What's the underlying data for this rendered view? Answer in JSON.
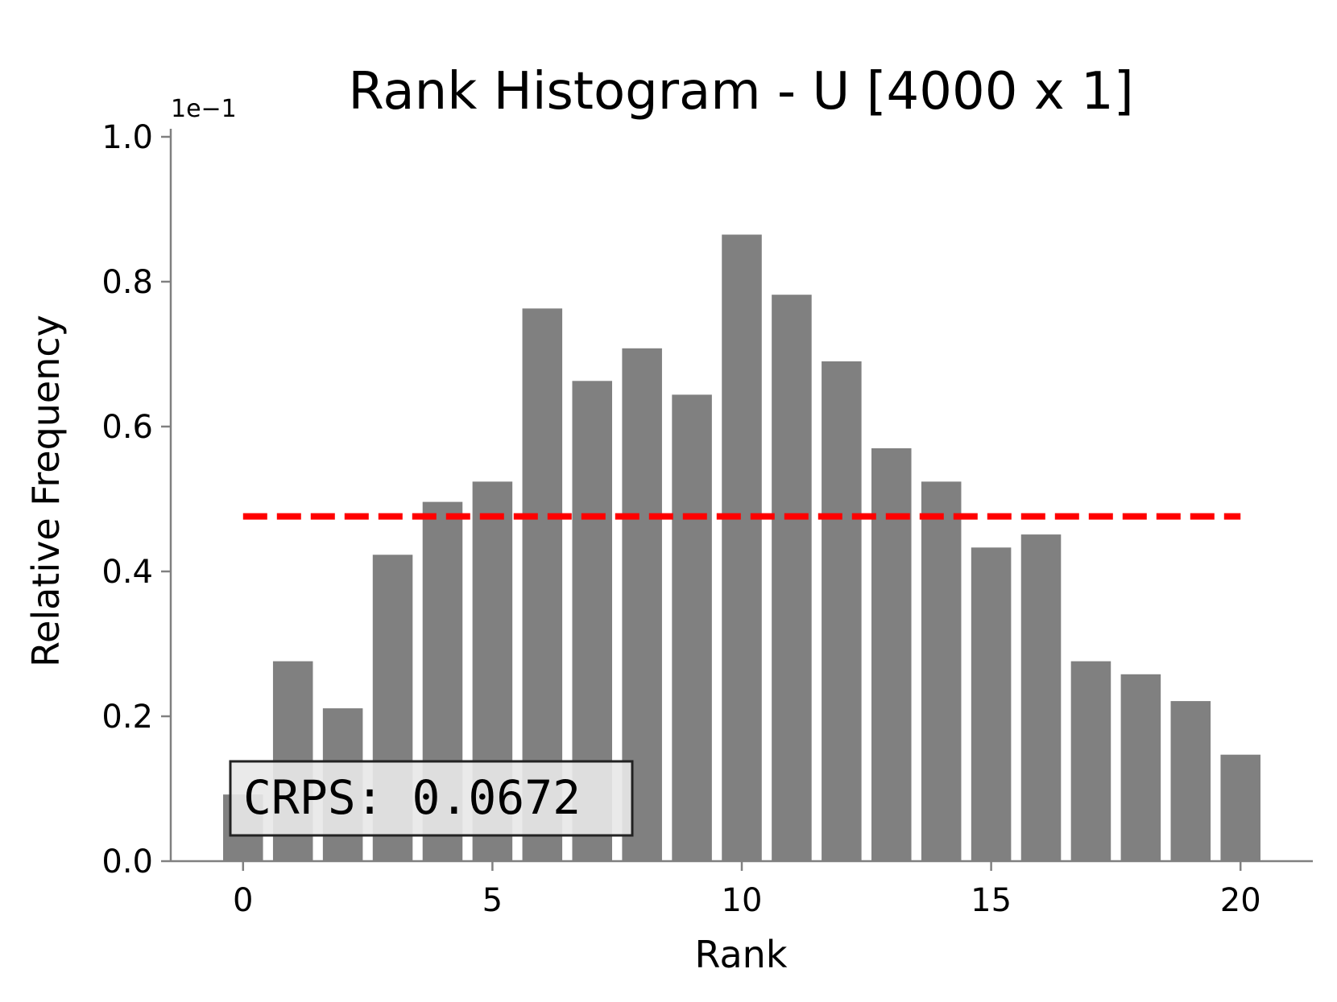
{
  "chart_data": {
    "type": "bar",
    "title": "Rank Histogram - U [4000 x 1]",
    "xlabel": "Rank",
    "ylabel": "Relative Frequency",
    "y_offset_label": "1e−1",
    "x": [
      0,
      1,
      2,
      3,
      4,
      5,
      6,
      7,
      8,
      9,
      10,
      11,
      12,
      13,
      14,
      15,
      16,
      17,
      18,
      19,
      20
    ],
    "values": [
      0.92,
      2.76,
      2.11,
      4.23,
      4.96,
      5.24,
      7.63,
      6.63,
      7.08,
      6.44,
      8.65,
      7.82,
      6.9,
      5.7,
      5.24,
      4.33,
      4.51,
      2.76,
      2.58,
      2.21,
      1.47
    ],
    "reference_line": 4.76,
    "xlim": [
      -1.45,
      21.45
    ],
    "ylim": [
      0,
      1.0
    ],
    "y_scale_note": "values in units of 1e-1",
    "xticks": [
      0,
      5,
      10,
      15,
      20
    ],
    "xtick_labels": [
      "0",
      "5",
      "10",
      "15",
      "20"
    ],
    "yticks": [
      0.0,
      0.2,
      0.4,
      0.6,
      0.8,
      1.0
    ],
    "ytick_labels": [
      "0.0",
      "0.2",
      "0.4",
      "0.6",
      "0.8",
      "1.0"
    ],
    "annotation": "CRPS: 0.0672",
    "colors": {
      "bar": "#808080",
      "reference_line": "#ff0000",
      "axis": "#808080",
      "annotation_bg": "#e8e8e8",
      "annotation_border": "#222222"
    },
    "grid": false,
    "legend": "none"
  }
}
